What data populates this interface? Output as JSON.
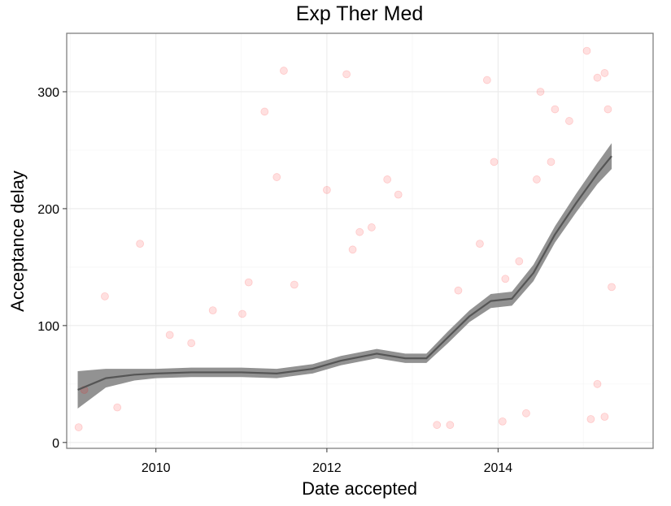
{
  "chart_data": {
    "type": "scatter",
    "title": "Exp Ther Med",
    "xlabel": "Date accepted",
    "ylabel": "Acceptance delay",
    "x_type": "date",
    "xlim": [
      "2008-12-16",
      "2015-10-25"
    ],
    "ylim": [
      -5,
      350
    ],
    "x_ticks": [
      {
        "value": "2010-01-01",
        "label": "2010"
      },
      {
        "value": "2012-01-01",
        "label": "2012"
      },
      {
        "value": "2014-01-01",
        "label": "2014"
      }
    ],
    "y_ticks": [
      0,
      100,
      200,
      300
    ],
    "grid": true,
    "point_color": "#ff0000",
    "point_opacity": 0.12,
    "smooth_color": "#555555",
    "ribbon_color": "#8c8c8c",
    "series": [
      {
        "kind": "points",
        "points": [
          [
            "2009-02-05",
            13
          ],
          [
            "2009-03-01",
            45
          ],
          [
            "2009-05-28",
            125
          ],
          [
            "2009-07-20",
            30
          ],
          [
            "2009-10-25",
            170
          ],
          [
            "2010-03-01",
            92
          ],
          [
            "2010-06-01",
            85
          ],
          [
            "2010-09-01",
            113
          ],
          [
            "2011-01-05",
            110
          ],
          [
            "2011-02-01",
            137
          ],
          [
            "2011-04-10",
            283
          ],
          [
            "2011-06-01",
            227
          ],
          [
            "2011-07-01",
            318
          ],
          [
            "2011-08-15",
            135
          ],
          [
            "2012-01-01",
            216
          ],
          [
            "2012-03-25",
            315
          ],
          [
            "2012-04-20",
            165
          ],
          [
            "2012-05-20",
            180
          ],
          [
            "2012-07-10",
            184
          ],
          [
            "2012-09-15",
            225
          ],
          [
            "2012-11-01",
            212
          ],
          [
            "2013-04-15",
            15
          ],
          [
            "2013-06-10",
            15
          ],
          [
            "2013-07-15",
            130
          ],
          [
            "2013-10-15",
            170
          ],
          [
            "2013-11-15",
            310
          ],
          [
            "2013-12-15",
            240
          ],
          [
            "2014-01-20",
            18
          ],
          [
            "2014-02-01",
            140
          ],
          [
            "2014-04-01",
            155
          ],
          [
            "2014-05-01",
            25
          ],
          [
            "2014-06-15",
            225
          ],
          [
            "2014-07-01",
            300
          ],
          [
            "2014-08-15",
            240
          ],
          [
            "2014-09-01",
            285
          ],
          [
            "2014-11-01",
            275
          ],
          [
            "2015-01-15",
            335
          ],
          [
            "2015-03-01",
            312
          ],
          [
            "2015-04-01",
            316
          ],
          [
            "2015-04-15",
            285
          ],
          [
            "2015-02-01",
            20
          ],
          [
            "2015-03-01",
            50
          ],
          [
            "2015-05-01",
            133
          ],
          [
            "2015-04-01",
            22
          ]
        ]
      },
      {
        "kind": "smooth",
        "points": [
          [
            "2009-02-01",
            45
          ],
          [
            "2009-06-01",
            55
          ],
          [
            "2009-10-01",
            58
          ],
          [
            "2010-01-01",
            59
          ],
          [
            "2010-06-01",
            60
          ],
          [
            "2011-01-01",
            60
          ],
          [
            "2011-06-01",
            59
          ],
          [
            "2011-11-01",
            63
          ],
          [
            "2012-03-01",
            70
          ],
          [
            "2012-08-01",
            76
          ],
          [
            "2012-12-01",
            72
          ],
          [
            "2013-03-01",
            72
          ],
          [
            "2013-06-01",
            90
          ],
          [
            "2013-09-01",
            108
          ],
          [
            "2013-12-01",
            121
          ],
          [
            "2014-03-01",
            123
          ],
          [
            "2014-06-01",
            145
          ],
          [
            "2014-09-01",
            178
          ],
          [
            "2014-12-01",
            205
          ],
          [
            "2015-03-01",
            230
          ],
          [
            "2015-05-01",
            245
          ]
        ],
        "band": [
          16,
          8,
          5,
          4,
          4,
          4,
          4,
          4,
          4,
          4,
          4,
          4,
          5,
          5,
          6,
          6,
          7,
          7,
          8,
          9,
          11
        ]
      }
    ]
  }
}
